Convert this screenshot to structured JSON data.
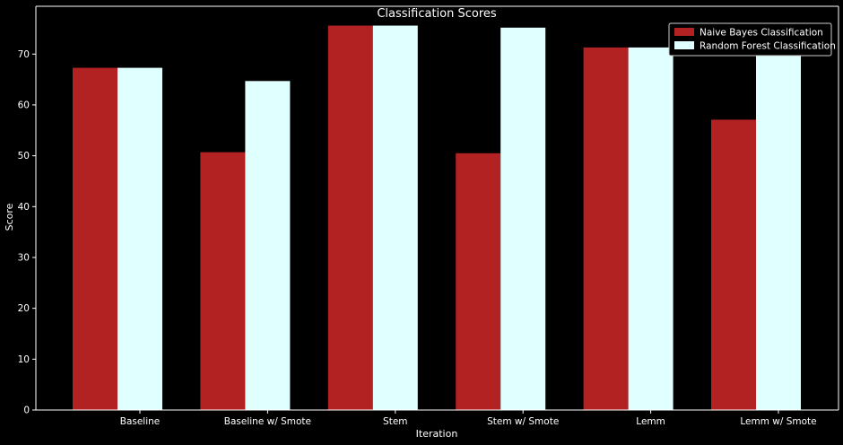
{
  "chart_data": {
    "type": "bar",
    "title": "Classification Scores",
    "xlabel": "Iteration",
    "ylabel": "Score",
    "categories": [
      "Baseline",
      "Baseline w/ Smote",
      "Stem",
      "Stem w/ Smote",
      "Lemm",
      "Lemm w/ Smote"
    ],
    "series": [
      {
        "name": "Naive Bayes Classification",
        "values": [
          67.3,
          50.7,
          75.6,
          50.5,
          71.3,
          57.1
        ],
        "color": "#b22222"
      },
      {
        "name": "Random Forest Classification",
        "values": [
          67.3,
          64.7,
          75.6,
          75.2,
          71.3,
          71.0
        ],
        "color": "#e0ffff"
      }
    ],
    "yticks": [
      0,
      10,
      20,
      30,
      40,
      50,
      60,
      70
    ],
    "ylim": [
      0,
      79.4
    ],
    "grid": false,
    "legend_position": "top-right",
    "background": "#000000",
    "axis_color": "#ffffff"
  }
}
